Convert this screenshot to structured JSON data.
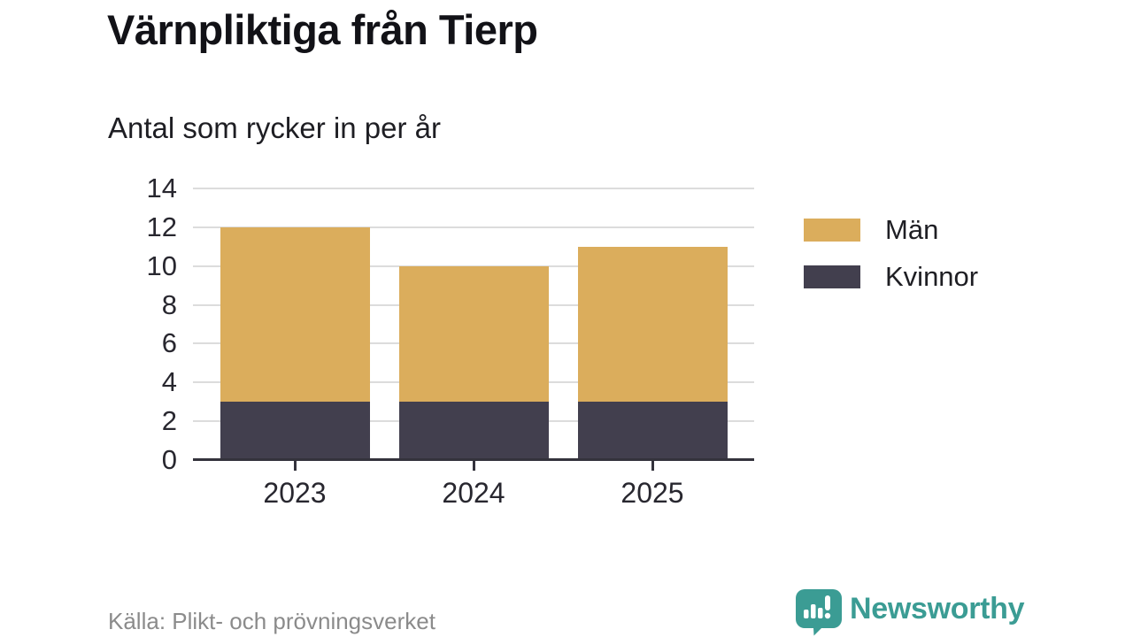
{
  "header": {
    "title": "Värnpliktiga från Tierp",
    "subtitle": "Antal som rycker in per år"
  },
  "chart_data": {
    "type": "bar",
    "stacked": true,
    "title": "Värnpliktiga från Tierp",
    "subtitle": "Antal som rycker in per år",
    "categories": [
      "2023",
      "2024",
      "2025"
    ],
    "series": [
      {
        "name": "Kvinnor",
        "color": "#423f4e",
        "values": [
          3,
          3,
          3
        ]
      },
      {
        "name": "Män",
        "color": "#dbad5c",
        "values": [
          9,
          7,
          8
        ]
      }
    ],
    "totals": [
      12,
      10,
      11
    ],
    "xlabel": "",
    "ylabel": "",
    "ylim": [
      0,
      14
    ],
    "yticks": [
      0,
      2,
      4,
      6,
      8,
      10,
      12,
      14
    ],
    "grid": true,
    "legend_position": "right",
    "legend": [
      {
        "label": "Män",
        "color": "#dbad5c"
      },
      {
        "label": "Kvinnor",
        "color": "#423f4e"
      }
    ],
    "colors": {
      "grid": "#dcdcdc",
      "axis": "#34333c",
      "tick_text": "#28272f"
    }
  },
  "footer": {
    "source": "Källa: Plikt- och prövningsverket",
    "brand": "Newsworthy",
    "brand_color": "#3b9c94",
    "logo_icon": "bar-chart-speech-bubble-icon"
  }
}
